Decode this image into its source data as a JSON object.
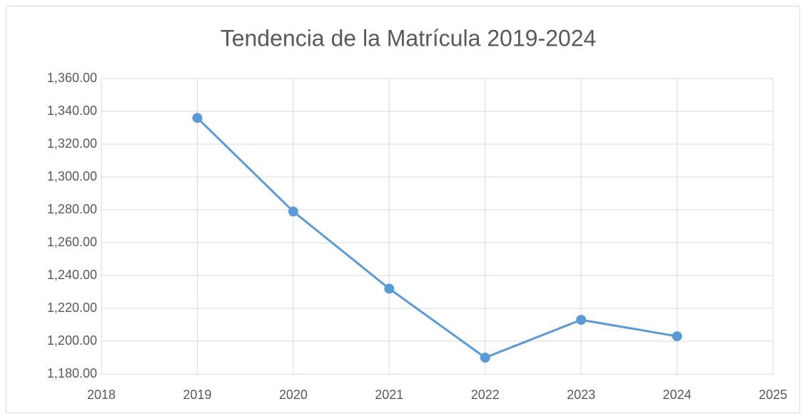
{
  "chart_data": {
    "type": "line",
    "title": "Tendencia de la Matrícula 2019-2024",
    "x": [
      2019,
      2020,
      2021,
      2022,
      2023,
      2024
    ],
    "values": [
      1336,
      1279,
      1232,
      1190,
      1213,
      1203
    ],
    "color": "#5b9bd5",
    "xlim": [
      2018,
      2025
    ],
    "xticks": [
      2018,
      2019,
      2020,
      2021,
      2022,
      2023,
      2024,
      2025
    ],
    "ylim": [
      1180,
      1360
    ],
    "yticks": [
      {
        "value": 1180,
        "label": "1,180.00"
      },
      {
        "value": 1200,
        "label": "1,200.00"
      },
      {
        "value": 1220,
        "label": "1,220.00"
      },
      {
        "value": 1240,
        "label": "1,240.00"
      },
      {
        "value": 1260,
        "label": "1,260.00"
      },
      {
        "value": 1280,
        "label": "1,280.00"
      },
      {
        "value": 1300,
        "label": "1,300.00"
      },
      {
        "value": 1320,
        "label": "1,320.00"
      },
      {
        "value": 1340,
        "label": "1,340.00"
      },
      {
        "value": 1360,
        "label": "1,360.00"
      }
    ],
    "grid": true
  }
}
